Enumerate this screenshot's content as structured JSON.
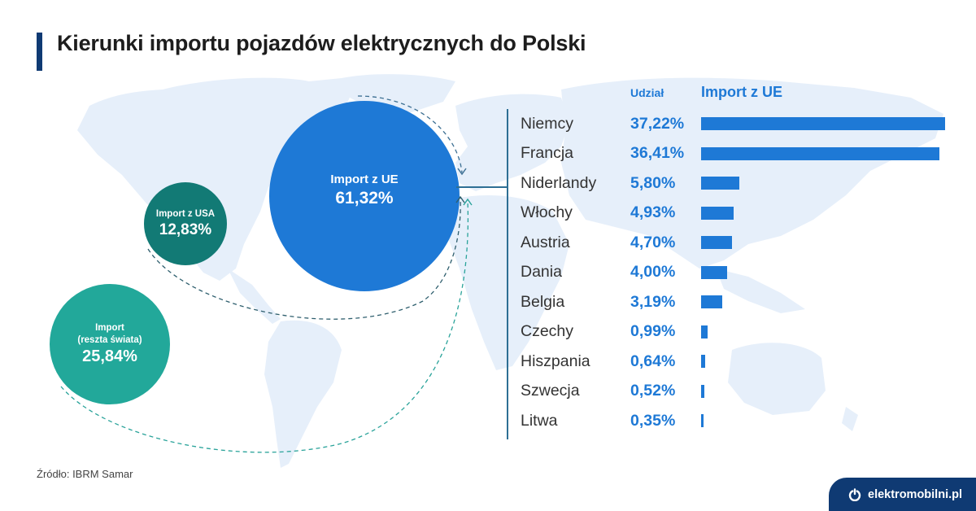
{
  "header": {
    "title": "Kierunki importu pojazdów elektrycznych do Polski"
  },
  "bubbles": {
    "eu": {
      "label": "Import z UE",
      "value": "61,32%",
      "color": "#1e79d6"
    },
    "usa": {
      "label": "Import z USA",
      "value": "12,83%",
      "color": "#127a75"
    },
    "rest": {
      "label_line1": "Import",
      "label_line2": "(reszta świata)",
      "value": "25,84%",
      "color": "#22a89a"
    }
  },
  "table": {
    "share_header": "Udział",
    "import_header": "Import z UE",
    "bar_color": "#1e79d6",
    "rows": [
      {
        "country": "Niemcy",
        "share": "37,22%",
        "value": 37.22
      },
      {
        "country": "Francja",
        "share": "36,41%",
        "value": 36.41
      },
      {
        "country": "Niderlandy",
        "share": "5,80%",
        "value": 5.8
      },
      {
        "country": "Włochy",
        "share": "4,93%",
        "value": 4.93
      },
      {
        "country": "Austria",
        "share": "4,70%",
        "value": 4.7
      },
      {
        "country": "Dania",
        "share": "4,00%",
        "value": 4.0
      },
      {
        "country": "Belgia",
        "share": "3,19%",
        "value": 3.19
      },
      {
        "country": "Czechy",
        "share": "0,99%",
        "value": 0.99
      },
      {
        "country": "Hiszpania",
        "share": "0,64%",
        "value": 0.64
      },
      {
        "country": "Szwecja",
        "share": "0,52%",
        "value": 0.52
      },
      {
        "country": "Litwa",
        "share": "0,35%",
        "value": 0.35
      }
    ]
  },
  "footer": {
    "source": "Źródło: IBRM Samar",
    "brand": "elektromobilni.pl",
    "brand_icon": "power-icon",
    "brand_color": "#0f3a73"
  },
  "chart_data": [
    {
      "type": "bubble",
      "title": "Kierunki importu pojazdów elektrycznych do Polski",
      "categories": [
        "Import z UE",
        "Import z USA",
        "Import (reszta świata)"
      ],
      "values": [
        61.32,
        12.83,
        25.84
      ],
      "unit": "%"
    },
    {
      "type": "bar",
      "orientation": "horizontal",
      "title": "Import z UE",
      "value_label_header": "Udział",
      "categories": [
        "Niemcy",
        "Francja",
        "Niderlandy",
        "Włochy",
        "Austria",
        "Dania",
        "Belgia",
        "Czechy",
        "Hiszpania",
        "Szwecja",
        "Litwa"
      ],
      "values": [
        37.22,
        36.41,
        5.8,
        4.93,
        4.7,
        4.0,
        3.19,
        0.99,
        0.64,
        0.52,
        0.35
      ],
      "unit": "%",
      "grid": false,
      "legend": "none",
      "source": "Źródło: IBRM Samar"
    }
  ]
}
